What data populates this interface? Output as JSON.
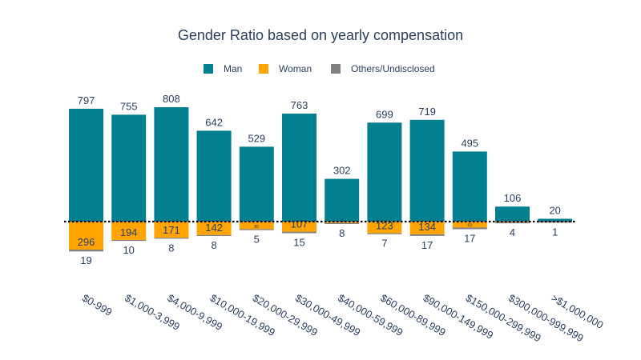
{
  "chart_data": {
    "type": "bar",
    "title": "Gender Ratio based on yearly compensation",
    "xlabel": "",
    "ylabel": "",
    "legend_position": "top",
    "categories": [
      "$0-999",
      "$1,000-3,999",
      "$4,000-9,999",
      "$10,000-19,999",
      "$20,000-29,999",
      "$30,000-49,999",
      "$40,000-59,999",
      "$60,000-89,999",
      "$90,000-149,999",
      "$150,000-299,999",
      "$300,000-999,999",
      ">$1,000,000"
    ],
    "series": [
      {
        "name": "Man",
        "color": "#028090",
        "values": [
          797,
          755,
          808,
          642,
          529,
          763,
          302,
          699,
          719,
          495,
          106,
          20
        ]
      },
      {
        "name": "Woman",
        "color": "#ffa400",
        "values": [
          296,
          194,
          171,
          142,
          80,
          107,
          15,
          123,
          134,
          63,
          8,
          1
        ]
      },
      {
        "name": "Others/Undisclosed",
        "color": "#808080",
        "values": [
          19,
          10,
          8,
          8,
          5,
          15,
          8,
          7,
          17,
          17,
          4,
          1
        ]
      }
    ],
    "woman_labels": [
      "296",
      "194",
      "171",
      "142",
      "80",
      "107",
      "15",
      "123",
      "134",
      "63",
      "",
      ""
    ],
    "baseline_style": "dotted",
    "grid": false
  }
}
